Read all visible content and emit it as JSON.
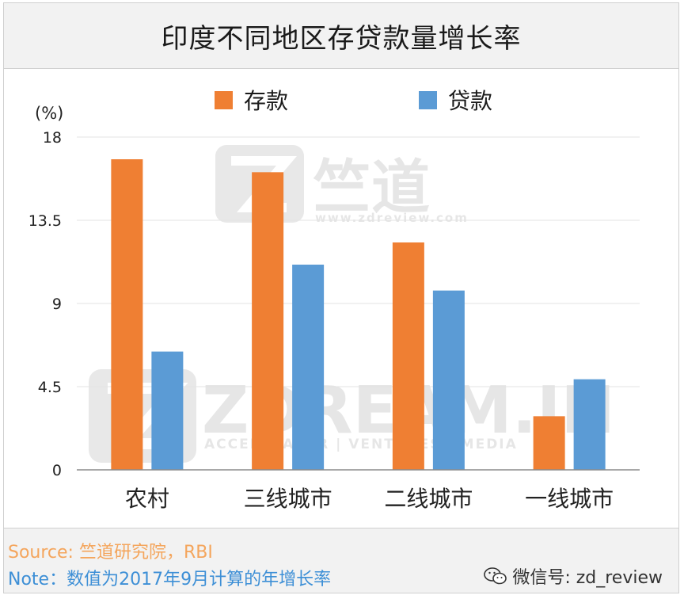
{
  "title": "印度不同地区存贷款量增长率",
  "unit_label": "(%)",
  "footer": {
    "source": "Source: 竺道研究院，RBI",
    "note": "Note：数值为2017年9月计算的年增长率",
    "wechat": "微信号: zd_review"
  },
  "watermark": {
    "brand_cn": "竺道",
    "brand_url": "www.zdreview.com",
    "brand_big": "ZDREAM.IN",
    "brand_sub": "ACCELERATOR | VENTURES | MEDIA"
  },
  "colors": {
    "deposit": "#ef7f33",
    "loan": "#5b9bd5",
    "grid": "#e3e3e3",
    "axis": "#8c8c8c"
  },
  "chart_data": {
    "type": "bar",
    "title": "印度不同地区存贷款量增长率",
    "ylabel": "(%)",
    "xlabel": "",
    "categories": [
      "农村",
      "三线城市",
      "二线城市",
      "一线城市"
    ],
    "series": [
      {
        "name": "存款",
        "values": [
          16.8,
          16.1,
          12.3,
          2.9
        ]
      },
      {
        "name": "贷款",
        "values": [
          6.4,
          11.1,
          9.7,
          4.9
        ]
      }
    ],
    "ylim": [
      0,
      18
    ],
    "yticks": [
      0,
      4.5,
      9,
      13.5,
      18
    ],
    "ytick_labels": [
      "0",
      "4.5",
      "9",
      "13.5",
      "18"
    ],
    "grid": true,
    "legend": "top-center"
  }
}
